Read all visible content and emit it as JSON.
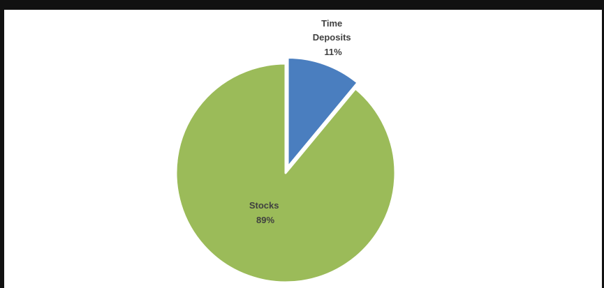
{
  "chart_data": {
    "type": "pie",
    "title": "",
    "slices": [
      {
        "label": "Time Deposits",
        "value": 11,
        "display": "11%",
        "color": "#4a7ebf"
      },
      {
        "label": "Stocks",
        "value": 89,
        "display": "89%",
        "color": "#9bbb59"
      }
    ],
    "exploded": "Time Deposits",
    "legend": "none",
    "start_angle_deg": 0,
    "direction": "clockwise"
  }
}
